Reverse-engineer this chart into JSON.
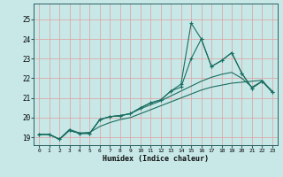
{
  "xlabel": "Humidex (Indice chaleur)",
  "bg_color": "#c8e8e8",
  "grid_color": "#dda8a8",
  "line_color": "#1a6e60",
  "xlim": [
    -0.5,
    23.5
  ],
  "ylim": [
    18.6,
    25.8
  ],
  "xticks": [
    0,
    1,
    2,
    3,
    4,
    5,
    6,
    7,
    8,
    9,
    10,
    11,
    12,
    13,
    14,
    15,
    16,
    17,
    18,
    19,
    20,
    21,
    22,
    23
  ],
  "yticks": [
    19,
    20,
    21,
    22,
    23,
    24,
    25
  ],
  "x": [
    0,
    1,
    2,
    3,
    4,
    5,
    6,
    7,
    8,
    9,
    10,
    11,
    12,
    13,
    14,
    15,
    16,
    17,
    18,
    19,
    20,
    21,
    22,
    23
  ],
  "line_jagged": [
    19.15,
    19.15,
    18.9,
    19.35,
    19.2,
    19.2,
    19.9,
    20.05,
    20.1,
    20.2,
    20.5,
    20.75,
    20.9,
    21.35,
    21.7,
    24.8,
    24.0,
    22.6,
    22.9,
    23.3,
    22.25,
    21.5,
    21.85,
    21.3
  ],
  "line_mid": [
    19.15,
    19.15,
    18.9,
    19.35,
    19.2,
    19.2,
    19.9,
    20.05,
    20.1,
    20.2,
    20.5,
    20.75,
    20.9,
    21.35,
    21.55,
    23.0,
    24.0,
    22.6,
    22.9,
    23.3,
    22.25,
    21.5,
    21.85,
    21.3
  ],
  "line_upper": [
    19.15,
    19.15,
    18.9,
    19.35,
    19.2,
    19.2,
    19.9,
    20.05,
    20.1,
    20.2,
    20.45,
    20.65,
    20.85,
    21.1,
    21.35,
    21.6,
    21.85,
    22.05,
    22.2,
    22.3,
    22.0,
    21.55,
    21.85,
    21.35
  ],
  "line_lower": [
    19.15,
    19.15,
    18.9,
    19.4,
    19.22,
    19.25,
    19.55,
    19.75,
    19.9,
    20.0,
    20.2,
    20.4,
    20.6,
    20.8,
    21.0,
    21.2,
    21.4,
    21.55,
    21.65,
    21.75,
    21.8,
    21.85,
    21.9,
    21.3
  ],
  "xtick_fontsize": 4.5,
  "ytick_fontsize": 5.5,
  "xlabel_fontsize": 6.0
}
